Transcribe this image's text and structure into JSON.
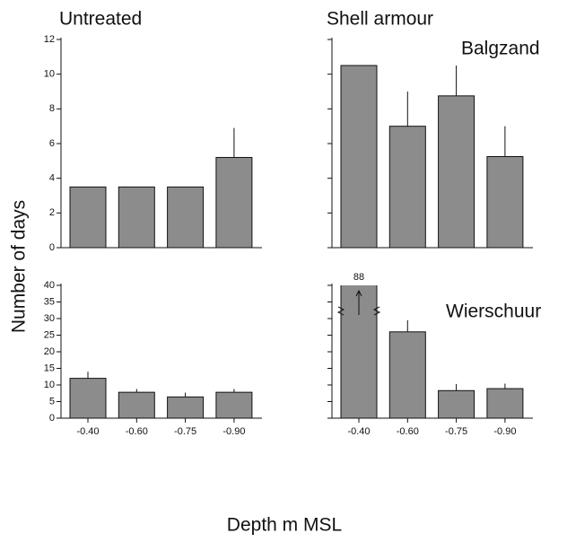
{
  "ylabel": "Number of days",
  "xlabel": "Depth m MSL",
  "chart_data": [
    {
      "type": "bar",
      "title": "Untreated",
      "values": [
        3.5,
        3.5,
        3.5,
        5.2
      ],
      "errors": [
        null,
        null,
        null,
        1.7
      ],
      "color": "#8c8c8c",
      "ylim": [
        0,
        12
      ],
      "yticks": [
        0,
        2,
        4,
        6,
        8,
        10,
        12
      ],
      "show_ytick_labels": true
    },
    {
      "type": "bar",
      "title": "Shell armour",
      "annotation": "Balgzand",
      "values": [
        10.5,
        7.0,
        8.75,
        5.25
      ],
      "errors": [
        null,
        2.0,
        1.75,
        1.75
      ],
      "color": "#8c8c8c",
      "ylim": [
        0,
        12
      ],
      "yticks": [
        0,
        2,
        4,
        6,
        8,
        10,
        12
      ],
      "show_ytick_labels": false
    },
    {
      "type": "bar",
      "categories": [
        "-0.40",
        "-0.60",
        "-0.75",
        "-0.90"
      ],
      "values": [
        12,
        7.8,
        6.4,
        7.8
      ],
      "errors": [
        2,
        1,
        1.3,
        1
      ],
      "color": "#8c8c8c",
      "ylim": [
        0,
        40
      ],
      "yticks": [
        0,
        5,
        10,
        15,
        20,
        25,
        30,
        35,
        40
      ],
      "show_ytick_labels": true
    },
    {
      "type": "bar",
      "annotation": "Wierschuur",
      "categories": [
        "-0.40",
        "-0.60",
        "-0.75",
        "-0.90"
      ],
      "values": [
        88,
        26,
        8.3,
        8.9
      ],
      "value_labels": [
        "88",
        null,
        null,
        null
      ],
      "errors": [
        null,
        3.5,
        2,
        1.5
      ],
      "color": "#8c8c8c",
      "ylim": [
        0,
        40
      ],
      "yticks": [
        0,
        5,
        10,
        15,
        20,
        25,
        30,
        35,
        40
      ],
      "show_ytick_labels": false
    }
  ]
}
